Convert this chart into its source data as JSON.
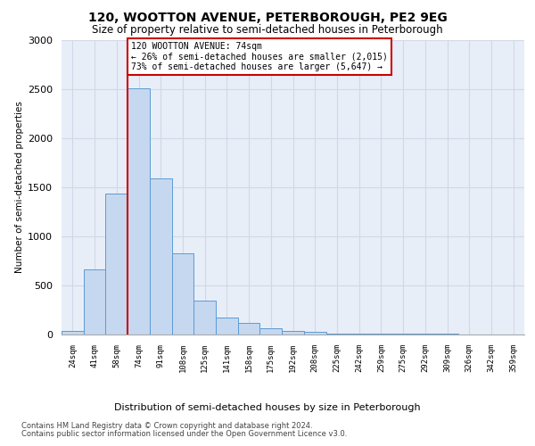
{
  "title": "120, WOOTTON AVENUE, PETERBOROUGH, PE2 9EG",
  "subtitle": "Size of property relative to semi-detached houses in Peterborough",
  "xlabel": "Distribution of semi-detached houses by size in Peterborough",
  "ylabel": "Number of semi-detached properties",
  "bar_labels": [
    "24sqm",
    "41sqm",
    "58sqm",
    "74sqm",
    "91sqm",
    "108sqm",
    "125sqm",
    "141sqm",
    "158sqm",
    "175sqm",
    "192sqm",
    "208sqm",
    "225sqm",
    "242sqm",
    "259sqm",
    "275sqm",
    "292sqm",
    "309sqm",
    "326sqm",
    "342sqm",
    "359sqm"
  ],
  "bar_values": [
    40,
    660,
    1440,
    2510,
    1590,
    830,
    350,
    175,
    115,
    60,
    35,
    30,
    10,
    10,
    5,
    5,
    5,
    5,
    0,
    0,
    0
  ],
  "bar_color": "#c5d8f0",
  "bar_edge_color": "#5b9bd5",
  "property_line_index": 3,
  "annotation_title": "120 WOOTTON AVENUE: 74sqm",
  "annotation_line1": "← 26% of semi-detached houses are smaller (2,015)",
  "annotation_line2": "73% of semi-detached houses are larger (5,647) →",
  "annotation_box_color": "#ffffff",
  "annotation_box_edge": "#cc0000",
  "vline_color": "#cc0000",
  "ylim": [
    0,
    3000
  ],
  "yticks": [
    0,
    500,
    1000,
    1500,
    2000,
    2500,
    3000
  ],
  "footnote1": "Contains HM Land Registry data © Crown copyright and database right 2024.",
  "footnote2": "Contains public sector information licensed under the Open Government Licence v3.0.",
  "grid_color": "#d0d8e8",
  "bg_color": "#e8eef8"
}
